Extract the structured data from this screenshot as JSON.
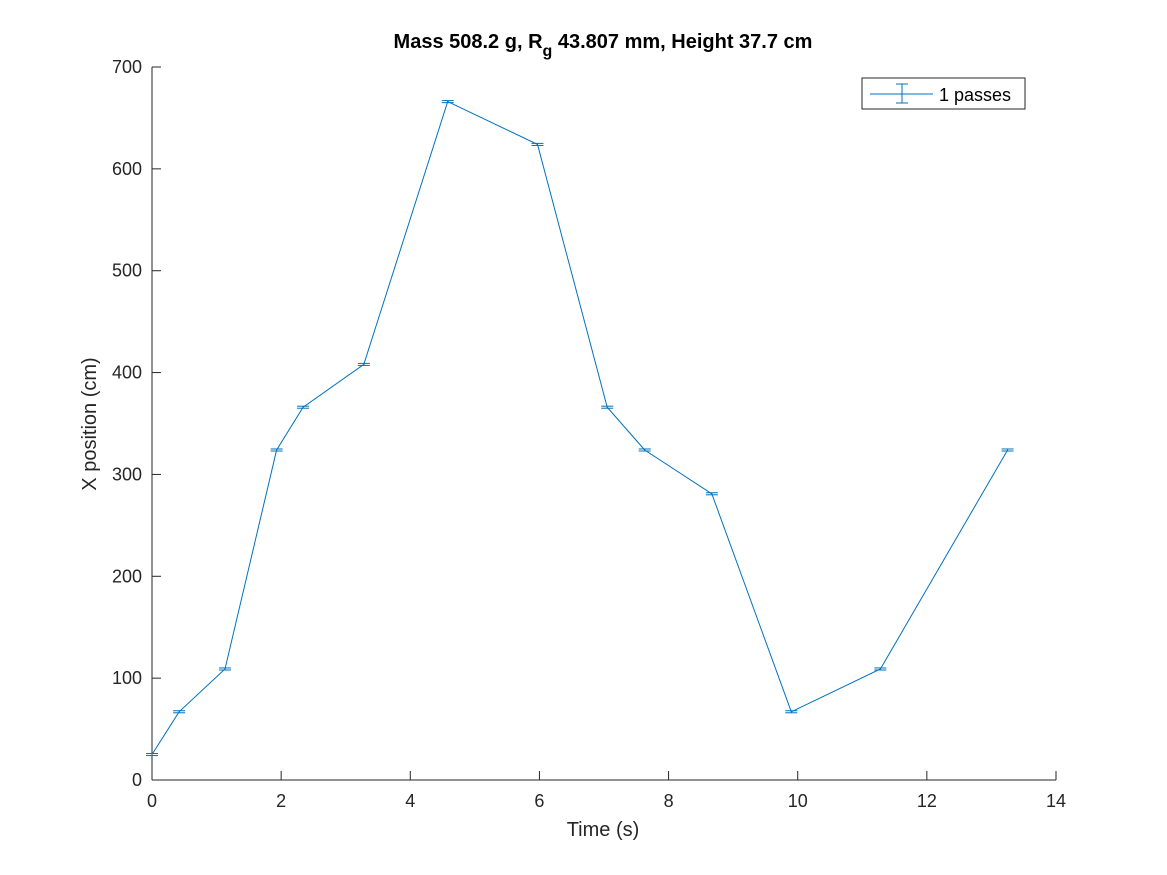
{
  "chart_data": {
    "type": "line",
    "title": {
      "prefix": "Mass 508.2 g, R",
      "subscript": "g",
      "suffix": " 43.807 mm,  Height 37.7 cm"
    },
    "xlabel": "Time (s)",
    "ylabel": "X position (cm)",
    "xlim": [
      0,
      14
    ],
    "ylim": [
      0,
      700
    ],
    "xticks": [
      0,
      2,
      4,
      6,
      8,
      10,
      12,
      14
    ],
    "yticks": [
      0,
      100,
      200,
      300,
      400,
      500,
      600,
      700
    ],
    "grid": false,
    "legend_position": "top-right",
    "colors": {
      "series": "#0072bd",
      "axis": "#262626"
    },
    "series": [
      {
        "name": "1 passes",
        "x": [
          0.0,
          0.42,
          1.13,
          1.93,
          2.34,
          3.28,
          4.58,
          5.97,
          7.05,
          7.63,
          8.67,
          9.9,
          11.28,
          13.25
        ],
        "y": [
          25,
          67,
          109,
          324,
          366,
          408,
          666,
          624,
          366,
          324,
          281,
          67,
          109,
          324
        ],
        "error": [
          1,
          1,
          1,
          1,
          1,
          1,
          1,
          1,
          1,
          1,
          1,
          1,
          1,
          1
        ]
      }
    ]
  }
}
